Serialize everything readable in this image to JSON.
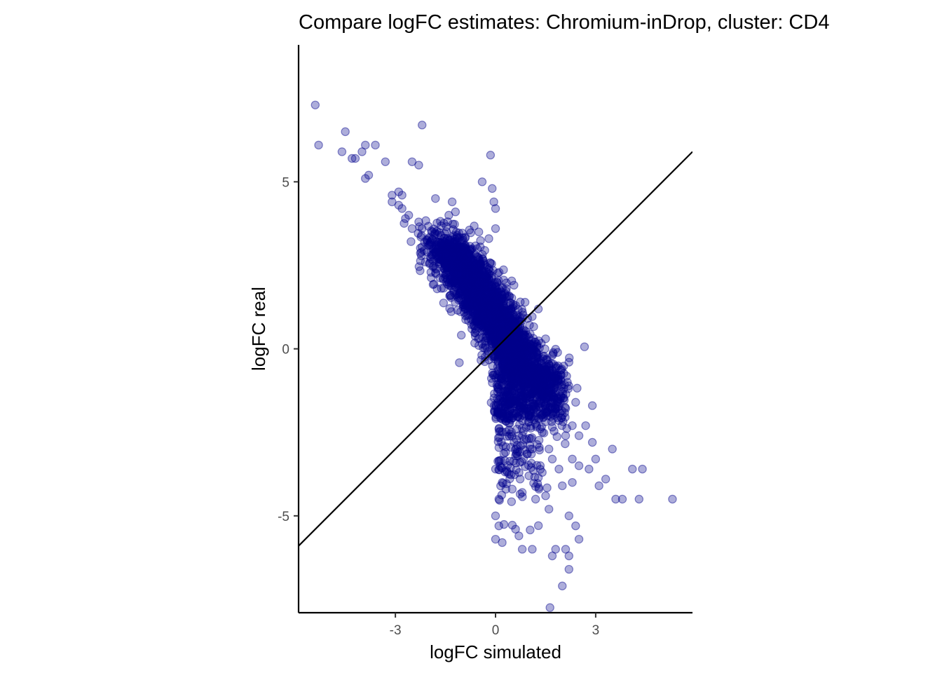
{
  "chart_data": {
    "type": "scatter",
    "title": "Compare logFC estimates: Chromium-inDrop, cluster: CD4",
    "xlabel": "logFC simulated",
    "ylabel": "logFC real",
    "xlim": [
      -5.9,
      5.9
    ],
    "ylim": [
      -7.9,
      9.1
    ],
    "x_ticks": [
      -3,
      0,
      3
    ],
    "x_tick_labels": [
      "-3",
      "0",
      "3"
    ],
    "y_ticks": [
      -5,
      0,
      5
    ],
    "y_tick_labels": [
      "-5",
      "0",
      "5"
    ],
    "reference_line": {
      "type": "identity",
      "slope": 1,
      "intercept": 0
    },
    "point_color": "#00008B",
    "grid": false,
    "legend": "none",
    "points": [
      [
        -5.4,
        7.3
      ],
      [
        -5.3,
        6.1
      ],
      [
        -4.6,
        5.9
      ],
      [
        -4.5,
        6.5
      ],
      [
        -4.3,
        5.7
      ],
      [
        -4.2,
        5.7
      ],
      [
        -4.0,
        5.9
      ],
      [
        -3.9,
        6.1
      ],
      [
        -3.6,
        6.1
      ],
      [
        -3.8,
        5.2
      ],
      [
        -3.9,
        5.1
      ],
      [
        -3.3,
        5.6
      ],
      [
        -2.5,
        5.6
      ],
      [
        -2.3,
        5.5
      ],
      [
        -2.2,
        6.7
      ],
      [
        -0.15,
        5.8
      ],
      [
        -0.4,
        5.0
      ],
      [
        -0.1,
        4.8
      ],
      [
        -0.05,
        4.4
      ],
      [
        0.0,
        4.2
      ],
      [
        -3.1,
        4.6
      ],
      [
        -3.1,
        4.4
      ],
      [
        -2.9,
        4.7
      ],
      [
        -2.8,
        4.6
      ],
      [
        -2.8,
        4.2
      ],
      [
        -2.6,
        4.0
      ],
      [
        -2.9,
        4.3
      ],
      [
        -2.7,
        3.9
      ],
      [
        -2.5,
        3.6
      ],
      [
        -2.3,
        3.8
      ],
      [
        -1.8,
        4.5
      ],
      [
        -1.3,
        4.4
      ],
      [
        -1.4,
        4.0
      ],
      [
        -1.2,
        4.1
      ],
      [
        -2.2,
        3.6
      ],
      [
        -2.0,
        3.3
      ],
      [
        -1.6,
        3.1
      ],
      [
        -1.9,
        3.5
      ],
      [
        -0.5,
        3.5
      ],
      [
        0.0,
        3.6
      ],
      [
        -0.2,
        3.3
      ],
      [
        -0.9,
        3.1
      ],
      [
        -2.1,
        2.6
      ],
      [
        -1.7,
        2.6
      ],
      [
        -0.6,
        1.0
      ],
      [
        -0.5,
        0.1
      ],
      [
        -0.3,
        1.4
      ],
      [
        -0.2,
        0.6
      ],
      [
        0.2,
        1.6
      ],
      [
        0.4,
        0.9
      ],
      [
        0.8,
        0.3
      ],
      [
        0.6,
        1.3
      ],
      [
        1.2,
        0.2
      ],
      [
        0.2,
        -1.6
      ],
      [
        0.4,
        -2.0
      ],
      [
        0.1,
        -2.4
      ],
      [
        0.3,
        -3.1
      ],
      [
        0.0,
        -3.6
      ],
      [
        0.2,
        -4.0
      ],
      [
        0.1,
        -4.5
      ],
      [
        0.0,
        -5.0
      ],
      [
        0.1,
        -5.3
      ],
      [
        0.0,
        -5.7
      ],
      [
        0.2,
        -5.8
      ],
      [
        0.6,
        -5.4
      ],
      [
        0.7,
        -5.6
      ],
      [
        0.8,
        -6.0
      ],
      [
        1.1,
        -6.0
      ],
      [
        1.7,
        -6.2
      ],
      [
        1.8,
        -6.0
      ],
      [
        2.1,
        -6.0
      ],
      [
        2.2,
        -6.2
      ],
      [
        2.2,
        -6.6
      ],
      [
        2.0,
        -7.1
      ],
      [
        2.4,
        -5.3
      ],
      [
        2.5,
        -5.7
      ],
      [
        2.2,
        -5.0
      ],
      [
        1.6,
        -4.8
      ],
      [
        1.2,
        -4.5
      ],
      [
        1.3,
        -4.2
      ],
      [
        0.8,
        -4.3
      ],
      [
        0.5,
        -4.2
      ],
      [
        1.0,
        -3.8
      ],
      [
        0.6,
        -3.2
      ],
      [
        1.4,
        -3.7
      ],
      [
        1.9,
        -3.6
      ],
      [
        2.3,
        -3.3
      ],
      [
        2.5,
        -3.5
      ],
      [
        2.8,
        -3.6
      ],
      [
        3.0,
        -3.3
      ],
      [
        3.1,
        -4.1
      ],
      [
        3.3,
        -3.9
      ],
      [
        3.5,
        -3.0
      ],
      [
        3.6,
        -4.5
      ],
      [
        3.8,
        -4.5
      ],
      [
        4.1,
        -3.6
      ],
      [
        4.4,
        -3.6
      ],
      [
        4.3,
        -4.5
      ],
      [
        5.3,
        -4.5
      ],
      [
        2.9,
        -2.8
      ],
      [
        2.7,
        -2.3
      ],
      [
        2.5,
        -2.6
      ],
      [
        2.3,
        -2.3
      ],
      [
        2.0,
        -2.0
      ],
      [
        1.8,
        -1.8
      ],
      [
        2.4,
        -1.6
      ],
      [
        2.9,
        -1.7
      ],
      [
        2.2,
        -0.4
      ],
      [
        1.7,
        -0.2
      ],
      [
        1.5,
        0.3
      ],
      [
        1.4,
        -0.7
      ],
      [
        0.9,
        -0.5
      ],
      [
        0.7,
        -1.4
      ],
      [
        0.5,
        -0.4
      ],
      [
        1.0,
        -2.2
      ],
      [
        1.4,
        -2.5
      ],
      [
        1.6,
        -3.0
      ],
      [
        1.1,
        -3.0
      ],
      [
        0.7,
        -2.6
      ],
      [
        2.0,
        -4.1
      ],
      [
        2.3,
        -4.0
      ],
      [
        1.5,
        -4.4
      ],
      [
        1.7,
        -3.3
      ],
      [
        2.1,
        -2.6
      ]
    ]
  }
}
